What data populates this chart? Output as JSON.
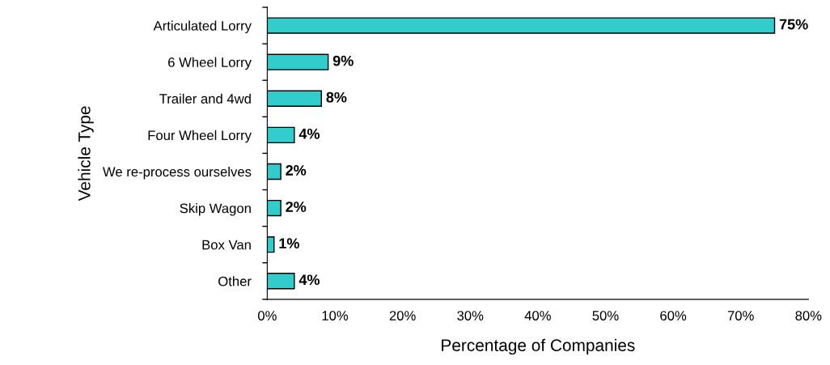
{
  "chart_data": {
    "type": "bar",
    "orientation": "horizontal",
    "xlabel": "Percentage of Companies",
    "ylabel": "Vehicle Type",
    "categories": [
      "Articulated Lorry",
      "6 Wheel Lorry",
      "Trailer and 4wd",
      "Four Wheel Lorry",
      "We re-process ourselves",
      "Skip Wagon",
      "Box Van",
      "Other"
    ],
    "values": [
      75,
      9,
      8,
      4,
      2,
      2,
      1,
      4
    ],
    "value_labels": [
      "75%",
      "9%",
      "8%",
      "4%",
      "2%",
      "2%",
      "1%",
      "4%"
    ],
    "color": "#33cccc",
    "xlim": [
      0,
      80
    ],
    "xticks": [
      {
        "value": 0,
        "label": "0%"
      },
      {
        "value": 10,
        "label": "10%"
      },
      {
        "value": 20,
        "label": "20%"
      },
      {
        "value": 30,
        "label": "30%"
      },
      {
        "value": 40,
        "label": "40%"
      },
      {
        "value": 50,
        "label": "50%"
      },
      {
        "value": 60,
        "label": "60%"
      },
      {
        "value": 70,
        "label": "70%"
      },
      {
        "value": 80,
        "label": "80%"
      }
    ],
    "grid": false
  }
}
